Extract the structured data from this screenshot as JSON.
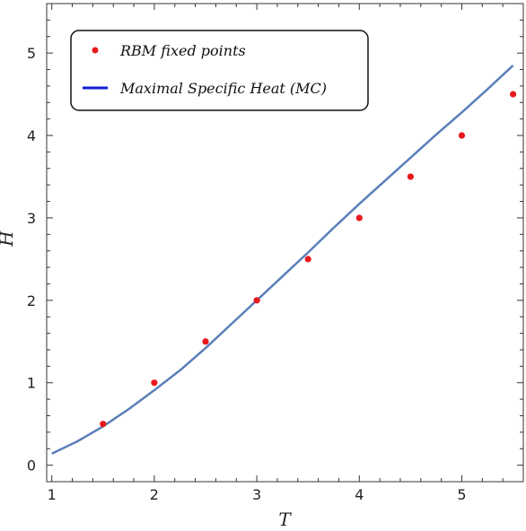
{
  "chart_data": {
    "type": "scatter",
    "xlabel": "T",
    "ylabel": "H",
    "xlim": [
      0.95,
      5.6
    ],
    "ylim": [
      -0.2,
      5.6
    ],
    "xticks": [
      1,
      2,
      3,
      4,
      5
    ],
    "yticks": [
      0,
      1,
      2,
      3,
      4,
      5
    ],
    "grid": false,
    "legend_position": "top-left",
    "series": [
      {
        "name": "RBM fixed points",
        "kind": "scatter",
        "color": "#e8191c",
        "x": [
          1.5,
          2.0,
          2.5,
          3.0,
          3.5,
          4.0,
          4.5,
          5.0,
          5.5
        ],
        "y": [
          0.5,
          1.0,
          1.5,
          2.0,
          2.5,
          3.0,
          3.5,
          4.0,
          4.5
        ]
      },
      {
        "name": "Maximal Specific Heat (MC)",
        "kind": "line",
        "color": "#5a7fb8",
        "legend_color": "#1020d0",
        "x": [
          1.0,
          1.25,
          1.5,
          1.75,
          2.0,
          2.25,
          2.5,
          2.75,
          3.0,
          3.25,
          3.5,
          3.75,
          4.0,
          4.25,
          4.5,
          4.75,
          5.0,
          5.25,
          5.5
        ],
        "y": [
          0.14,
          0.29,
          0.47,
          0.68,
          0.91,
          1.15,
          1.42,
          1.71,
          2.0,
          2.29,
          2.58,
          2.88,
          3.17,
          3.45,
          3.73,
          4.01,
          4.28,
          4.56,
          4.85
        ]
      }
    ]
  }
}
